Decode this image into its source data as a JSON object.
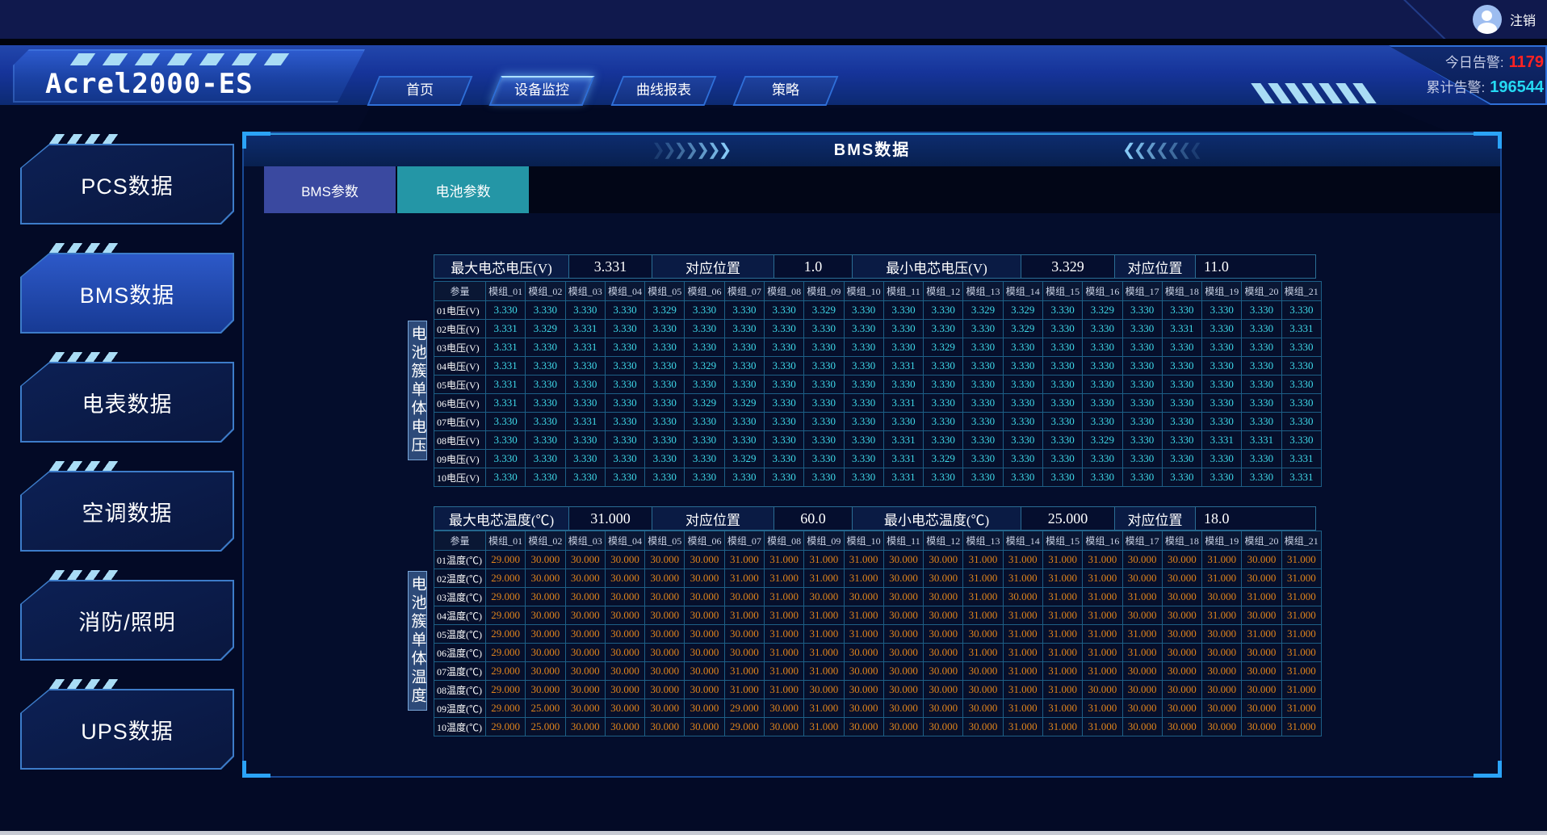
{
  "topbar": {
    "logout_label": "注销"
  },
  "header": {
    "logo": "Acrel2000-ES",
    "nav": [
      {
        "label": "首页",
        "active": false
      },
      {
        "label": "设备监控",
        "active": true
      },
      {
        "label": "曲线报表",
        "active": false
      },
      {
        "label": "策略",
        "active": false
      }
    ],
    "alarms": {
      "today_label": "今日告警:",
      "today_value": "1179",
      "total_label": "累计告警:",
      "total_value": "196544"
    }
  },
  "sidebar": {
    "items": [
      {
        "label": "PCS数据",
        "active": false
      },
      {
        "label": "BMS数据",
        "active": true
      },
      {
        "label": "电表数据",
        "active": false
      },
      {
        "label": "空调数据",
        "active": false
      },
      {
        "label": "消防/照明",
        "active": false
      },
      {
        "label": "UPS数据",
        "active": false
      }
    ]
  },
  "panel": {
    "title": "BMS数据",
    "chevron_right": "❯",
    "chevron_left": "❮",
    "tabs": [
      {
        "label": "BMS参数",
        "active": false
      },
      {
        "label": "电池参数",
        "active": true
      }
    ]
  },
  "voltage_table": {
    "summary": [
      {
        "label": "最大电芯电压(V)",
        "value": "3.331"
      },
      {
        "label": "对应位置",
        "value": "1.0"
      },
      {
        "label": "最小电芯电压(V)",
        "value": "3.329"
      },
      {
        "label": "对应位置",
        "value": "11.0"
      }
    ],
    "side_label": "电池簇单体电压",
    "param_header": "参量",
    "columns": [
      "模组_01",
      "模组_02",
      "模组_03",
      "模组_04",
      "模组_05",
      "模组_06",
      "模组_07",
      "模组_08",
      "模组_09",
      "模组_10",
      "模组_11",
      "模组_12",
      "模组_13",
      "模组_14",
      "模组_15",
      "模组_16",
      "模组_17",
      "模组_18",
      "模组_19",
      "模组_20",
      "模组_21"
    ],
    "rows": [
      {
        "label": "01电压(V)",
        "values": [
          "3.330",
          "3.330",
          "3.330",
          "3.330",
          "3.329",
          "3.330",
          "3.330",
          "3.330",
          "3.329",
          "3.330",
          "3.330",
          "3.330",
          "3.329",
          "3.329",
          "3.330",
          "3.329",
          "3.330",
          "3.330",
          "3.330",
          "3.330",
          "3.330"
        ]
      },
      {
        "label": "02电压(V)",
        "values": [
          "3.331",
          "3.329",
          "3.331",
          "3.330",
          "3.330",
          "3.330",
          "3.330",
          "3.330",
          "3.330",
          "3.330",
          "3.330",
          "3.330",
          "3.330",
          "3.329",
          "3.330",
          "3.330",
          "3.330",
          "3.331",
          "3.330",
          "3.330",
          "3.331"
        ]
      },
      {
        "label": "03电压(V)",
        "values": [
          "3.331",
          "3.330",
          "3.331",
          "3.330",
          "3.330",
          "3.330",
          "3.330",
          "3.330",
          "3.330",
          "3.330",
          "3.330",
          "3.329",
          "3.330",
          "3.330",
          "3.330",
          "3.330",
          "3.330",
          "3.330",
          "3.330",
          "3.330",
          "3.330"
        ]
      },
      {
        "label": "04电压(V)",
        "values": [
          "3.331",
          "3.330",
          "3.330",
          "3.330",
          "3.330",
          "3.329",
          "3.330",
          "3.330",
          "3.330",
          "3.330",
          "3.331",
          "3.330",
          "3.330",
          "3.330",
          "3.330",
          "3.330",
          "3.330",
          "3.330",
          "3.330",
          "3.330",
          "3.330"
        ]
      },
      {
        "label": "05电压(V)",
        "values": [
          "3.331",
          "3.330",
          "3.330",
          "3.330",
          "3.330",
          "3.330",
          "3.330",
          "3.330",
          "3.330",
          "3.330",
          "3.330",
          "3.330",
          "3.330",
          "3.330",
          "3.330",
          "3.330",
          "3.330",
          "3.330",
          "3.330",
          "3.330",
          "3.330"
        ]
      },
      {
        "label": "06电压(V)",
        "values": [
          "3.331",
          "3.330",
          "3.330",
          "3.330",
          "3.330",
          "3.329",
          "3.329",
          "3.330",
          "3.330",
          "3.330",
          "3.331",
          "3.330",
          "3.330",
          "3.330",
          "3.330",
          "3.330",
          "3.330",
          "3.330",
          "3.330",
          "3.330",
          "3.330"
        ]
      },
      {
        "label": "07电压(V)",
        "values": [
          "3.330",
          "3.330",
          "3.331",
          "3.330",
          "3.330",
          "3.330",
          "3.330",
          "3.330",
          "3.330",
          "3.330",
          "3.330",
          "3.330",
          "3.330",
          "3.330",
          "3.330",
          "3.330",
          "3.330",
          "3.330",
          "3.330",
          "3.330",
          "3.330"
        ]
      },
      {
        "label": "08电压(V)",
        "values": [
          "3.330",
          "3.330",
          "3.330",
          "3.330",
          "3.330",
          "3.330",
          "3.330",
          "3.330",
          "3.330",
          "3.330",
          "3.331",
          "3.330",
          "3.330",
          "3.330",
          "3.330",
          "3.329",
          "3.330",
          "3.330",
          "3.331",
          "3.331",
          "3.330"
        ]
      },
      {
        "label": "09电压(V)",
        "values": [
          "3.330",
          "3.330",
          "3.330",
          "3.330",
          "3.330",
          "3.330",
          "3.329",
          "3.330",
          "3.330",
          "3.330",
          "3.331",
          "3.329",
          "3.330",
          "3.330",
          "3.330",
          "3.330",
          "3.330",
          "3.330",
          "3.330",
          "3.330",
          "3.331"
        ]
      },
      {
        "label": "10电压(V)",
        "values": [
          "3.330",
          "3.330",
          "3.330",
          "3.330",
          "3.330",
          "3.330",
          "3.330",
          "3.330",
          "3.330",
          "3.330",
          "3.331",
          "3.330",
          "3.330",
          "3.330",
          "3.330",
          "3.330",
          "3.330",
          "3.330",
          "3.330",
          "3.330",
          "3.331"
        ]
      }
    ]
  },
  "temp_table": {
    "summary": [
      {
        "label": "最大电芯温度(℃)",
        "value": "31.000"
      },
      {
        "label": "对应位置",
        "value": "60.0"
      },
      {
        "label": "最小电芯温度(℃)",
        "value": "25.000"
      },
      {
        "label": "对应位置",
        "value": "18.0"
      }
    ],
    "side_label": "电池簇单体温度",
    "param_header": "参量",
    "columns": [
      "模组_01",
      "模组_02",
      "模组_03",
      "模组_04",
      "模组_05",
      "模组_06",
      "模组_07",
      "模组_08",
      "模组_09",
      "模组_10",
      "模组_11",
      "模组_12",
      "模组_13",
      "模组_14",
      "模组_15",
      "模组_16",
      "模组_17",
      "模组_18",
      "模组_19",
      "模组_20",
      "模组_21"
    ],
    "rows": [
      {
        "label": "01温度(℃)",
        "values": [
          "29.000",
          "30.000",
          "30.000",
          "30.000",
          "30.000",
          "30.000",
          "31.000",
          "31.000",
          "31.000",
          "31.000",
          "30.000",
          "30.000",
          "31.000",
          "31.000",
          "31.000",
          "31.000",
          "30.000",
          "30.000",
          "31.000",
          "30.000",
          "31.000"
        ]
      },
      {
        "label": "02温度(℃)",
        "values": [
          "29.000",
          "30.000",
          "30.000",
          "30.000",
          "30.000",
          "30.000",
          "31.000",
          "31.000",
          "31.000",
          "31.000",
          "30.000",
          "30.000",
          "31.000",
          "31.000",
          "31.000",
          "31.000",
          "30.000",
          "30.000",
          "31.000",
          "30.000",
          "31.000"
        ]
      },
      {
        "label": "03温度(℃)",
        "values": [
          "29.000",
          "30.000",
          "30.000",
          "30.000",
          "30.000",
          "30.000",
          "30.000",
          "31.000",
          "30.000",
          "30.000",
          "30.000",
          "30.000",
          "31.000",
          "30.000",
          "31.000",
          "31.000",
          "31.000",
          "30.000",
          "30.000",
          "31.000",
          "31.000"
        ]
      },
      {
        "label": "04温度(℃)",
        "values": [
          "29.000",
          "30.000",
          "30.000",
          "30.000",
          "30.000",
          "30.000",
          "31.000",
          "31.000",
          "31.000",
          "31.000",
          "30.000",
          "30.000",
          "31.000",
          "31.000",
          "31.000",
          "31.000",
          "30.000",
          "30.000",
          "31.000",
          "30.000",
          "31.000"
        ]
      },
      {
        "label": "05温度(℃)",
        "values": [
          "29.000",
          "30.000",
          "30.000",
          "30.000",
          "30.000",
          "30.000",
          "30.000",
          "31.000",
          "31.000",
          "31.000",
          "30.000",
          "30.000",
          "30.000",
          "31.000",
          "31.000",
          "31.000",
          "31.000",
          "30.000",
          "30.000",
          "31.000",
          "31.000"
        ]
      },
      {
        "label": "06温度(℃)",
        "values": [
          "29.000",
          "30.000",
          "30.000",
          "30.000",
          "30.000",
          "30.000",
          "30.000",
          "31.000",
          "31.000",
          "30.000",
          "30.000",
          "30.000",
          "31.000",
          "31.000",
          "31.000",
          "31.000",
          "31.000",
          "30.000",
          "30.000",
          "30.000",
          "31.000"
        ]
      },
      {
        "label": "07温度(℃)",
        "values": [
          "29.000",
          "30.000",
          "30.000",
          "30.000",
          "30.000",
          "30.000",
          "31.000",
          "31.000",
          "31.000",
          "30.000",
          "30.000",
          "30.000",
          "30.000",
          "31.000",
          "31.000",
          "31.000",
          "30.000",
          "30.000",
          "30.000",
          "30.000",
          "31.000"
        ]
      },
      {
        "label": "08温度(℃)",
        "values": [
          "29.000",
          "30.000",
          "30.000",
          "30.000",
          "30.000",
          "30.000",
          "31.000",
          "31.000",
          "30.000",
          "30.000",
          "30.000",
          "30.000",
          "30.000",
          "31.000",
          "31.000",
          "30.000",
          "30.000",
          "30.000",
          "30.000",
          "30.000",
          "31.000"
        ]
      },
      {
        "label": "09温度(℃)",
        "values": [
          "29.000",
          "25.000",
          "30.000",
          "30.000",
          "30.000",
          "30.000",
          "29.000",
          "30.000",
          "31.000",
          "30.000",
          "30.000",
          "30.000",
          "30.000",
          "31.000",
          "31.000",
          "31.000",
          "30.000",
          "30.000",
          "30.000",
          "30.000",
          "31.000"
        ]
      },
      {
        "label": "10温度(℃)",
        "values": [
          "29.000",
          "25.000",
          "30.000",
          "30.000",
          "30.000",
          "30.000",
          "29.000",
          "30.000",
          "31.000",
          "30.000",
          "30.000",
          "30.000",
          "30.000",
          "31.000",
          "31.000",
          "31.000",
          "30.000",
          "30.000",
          "30.000",
          "30.000",
          "31.000"
        ]
      }
    ]
  }
}
